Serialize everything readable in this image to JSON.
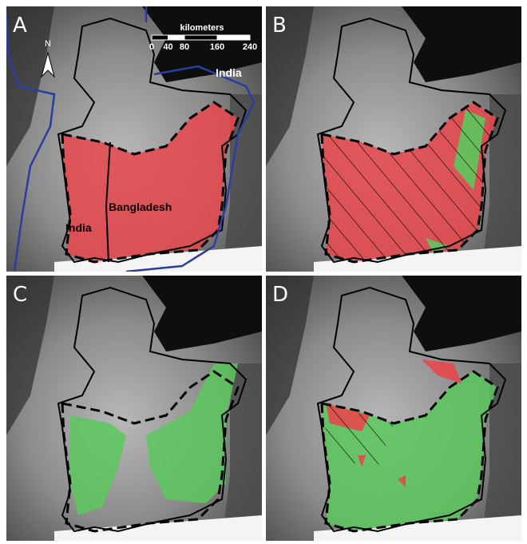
{
  "panels": [
    {
      "label": "A"
    },
    {
      "label": "B"
    },
    {
      "label": "C"
    },
    {
      "label": "D"
    }
  ],
  "scale_bar": {
    "title": "kilometers",
    "ticks": [
      0,
      40,
      80,
      160,
      240
    ]
  },
  "north_arrow": "N",
  "place_labels": [
    "India",
    "India",
    "Bangladesh"
  ]
}
